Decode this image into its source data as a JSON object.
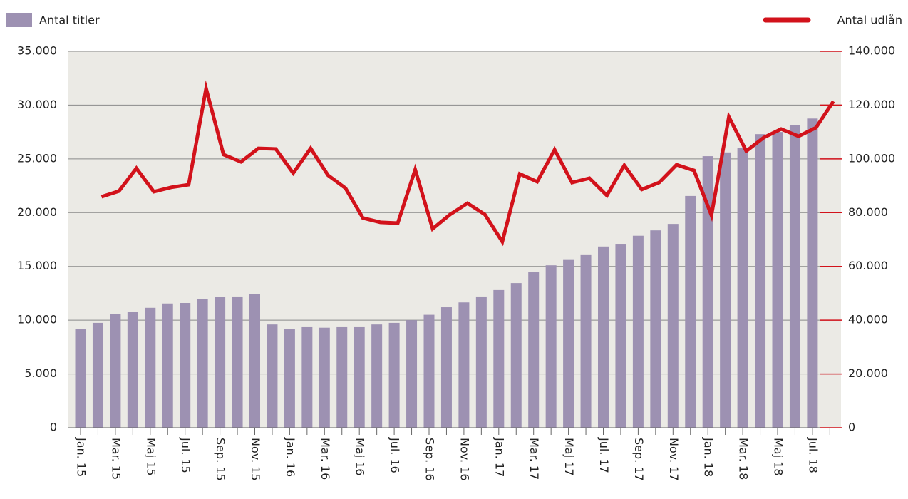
{
  "chart_data": {
    "type": "bar",
    "categories": [
      "Jan. 15",
      null,
      "Mar. 15",
      null,
      "Maj 15",
      null,
      "Jul. 15",
      null,
      "Sep. 15",
      null,
      "Nov. 15",
      null,
      "Jan. 16",
      null,
      "Mar. 16",
      null,
      "Maj 16",
      null,
      "Jul. 16",
      null,
      "Sep. 16",
      null,
      "Nov. 16",
      null,
      "Jan. 17",
      null,
      "Mar. 17",
      null,
      "Maj 17",
      null,
      "Jul. 17",
      null,
      "Sep. 17",
      null,
      "Nov. 17",
      null,
      "Jan. 18",
      null,
      "Mar. 18",
      null,
      "Maj 18",
      null,
      "Jul. 18",
      null
    ],
    "series": [
      {
        "name": "Antal titler",
        "type": "bar",
        "color": "#9d91b2",
        "values": [
          9200,
          9750,
          10550,
          10800,
          11150,
          11550,
          11600,
          11950,
          12150,
          12200,
          12450,
          9600,
          9200,
          9350,
          9300,
          9350,
          9350,
          9600,
          9750,
          10000,
          10500,
          11200,
          11650,
          12200,
          12800,
          13450,
          14450,
          15100,
          15600,
          16050,
          16850,
          17100,
          17850,
          18350,
          18950,
          21550,
          25250,
          25600,
          26050,
          27300,
          27500,
          28150,
          28750,
          null
        ]
      },
      {
        "name": "Antal udlån",
        "type": "line",
        "axis": "y2",
        "color": "#d2121b",
        "values": [
          null,
          85900,
          88000,
          96500,
          87800,
          89400,
          90400,
          126200,
          101600,
          98900,
          103900,
          103700,
          94700,
          103900,
          93900,
          89100,
          78000,
          76400,
          76100,
          96000,
          74000,
          79300,
          83500,
          79300,
          69200,
          94400,
          91500,
          103400,
          91200,
          92800,
          86400,
          97600,
          88600,
          91200,
          97800,
          95700,
          79000,
          115600,
          102900,
          107900,
          111100,
          108400,
          111600,
          121400
        ]
      }
    ],
    "ylim": [
      0,
      35000
    ],
    "yticks": [
      0,
      {
        "value": 5000,
        "label": "5.000"
      },
      {
        "value": 10000,
        "label": "10.000"
      },
      {
        "value": 15000,
        "label": "15.000"
      },
      {
        "value": 20000,
        "label": "20.000"
      },
      {
        "value": 25000,
        "label": "25.000"
      },
      {
        "value": 30000,
        "label": "30.000"
      },
      {
        "value": 35000,
        "label": "35.000"
      }
    ],
    "y2lim": [
      0,
      140000
    ],
    "y2ticks": [
      0,
      {
        "value": 20000,
        "label": "20.000"
      },
      {
        "value": 40000,
        "label": "40.000"
      },
      {
        "value": 60000,
        "label": "60.000"
      },
      {
        "value": 80000,
        "label": "80.000"
      },
      {
        "value": 100000,
        "label": "100.000"
      },
      {
        "value": 120000,
        "label": "120.000"
      },
      {
        "value": 140000,
        "label": "140.000"
      }
    ],
    "grid": true
  }
}
